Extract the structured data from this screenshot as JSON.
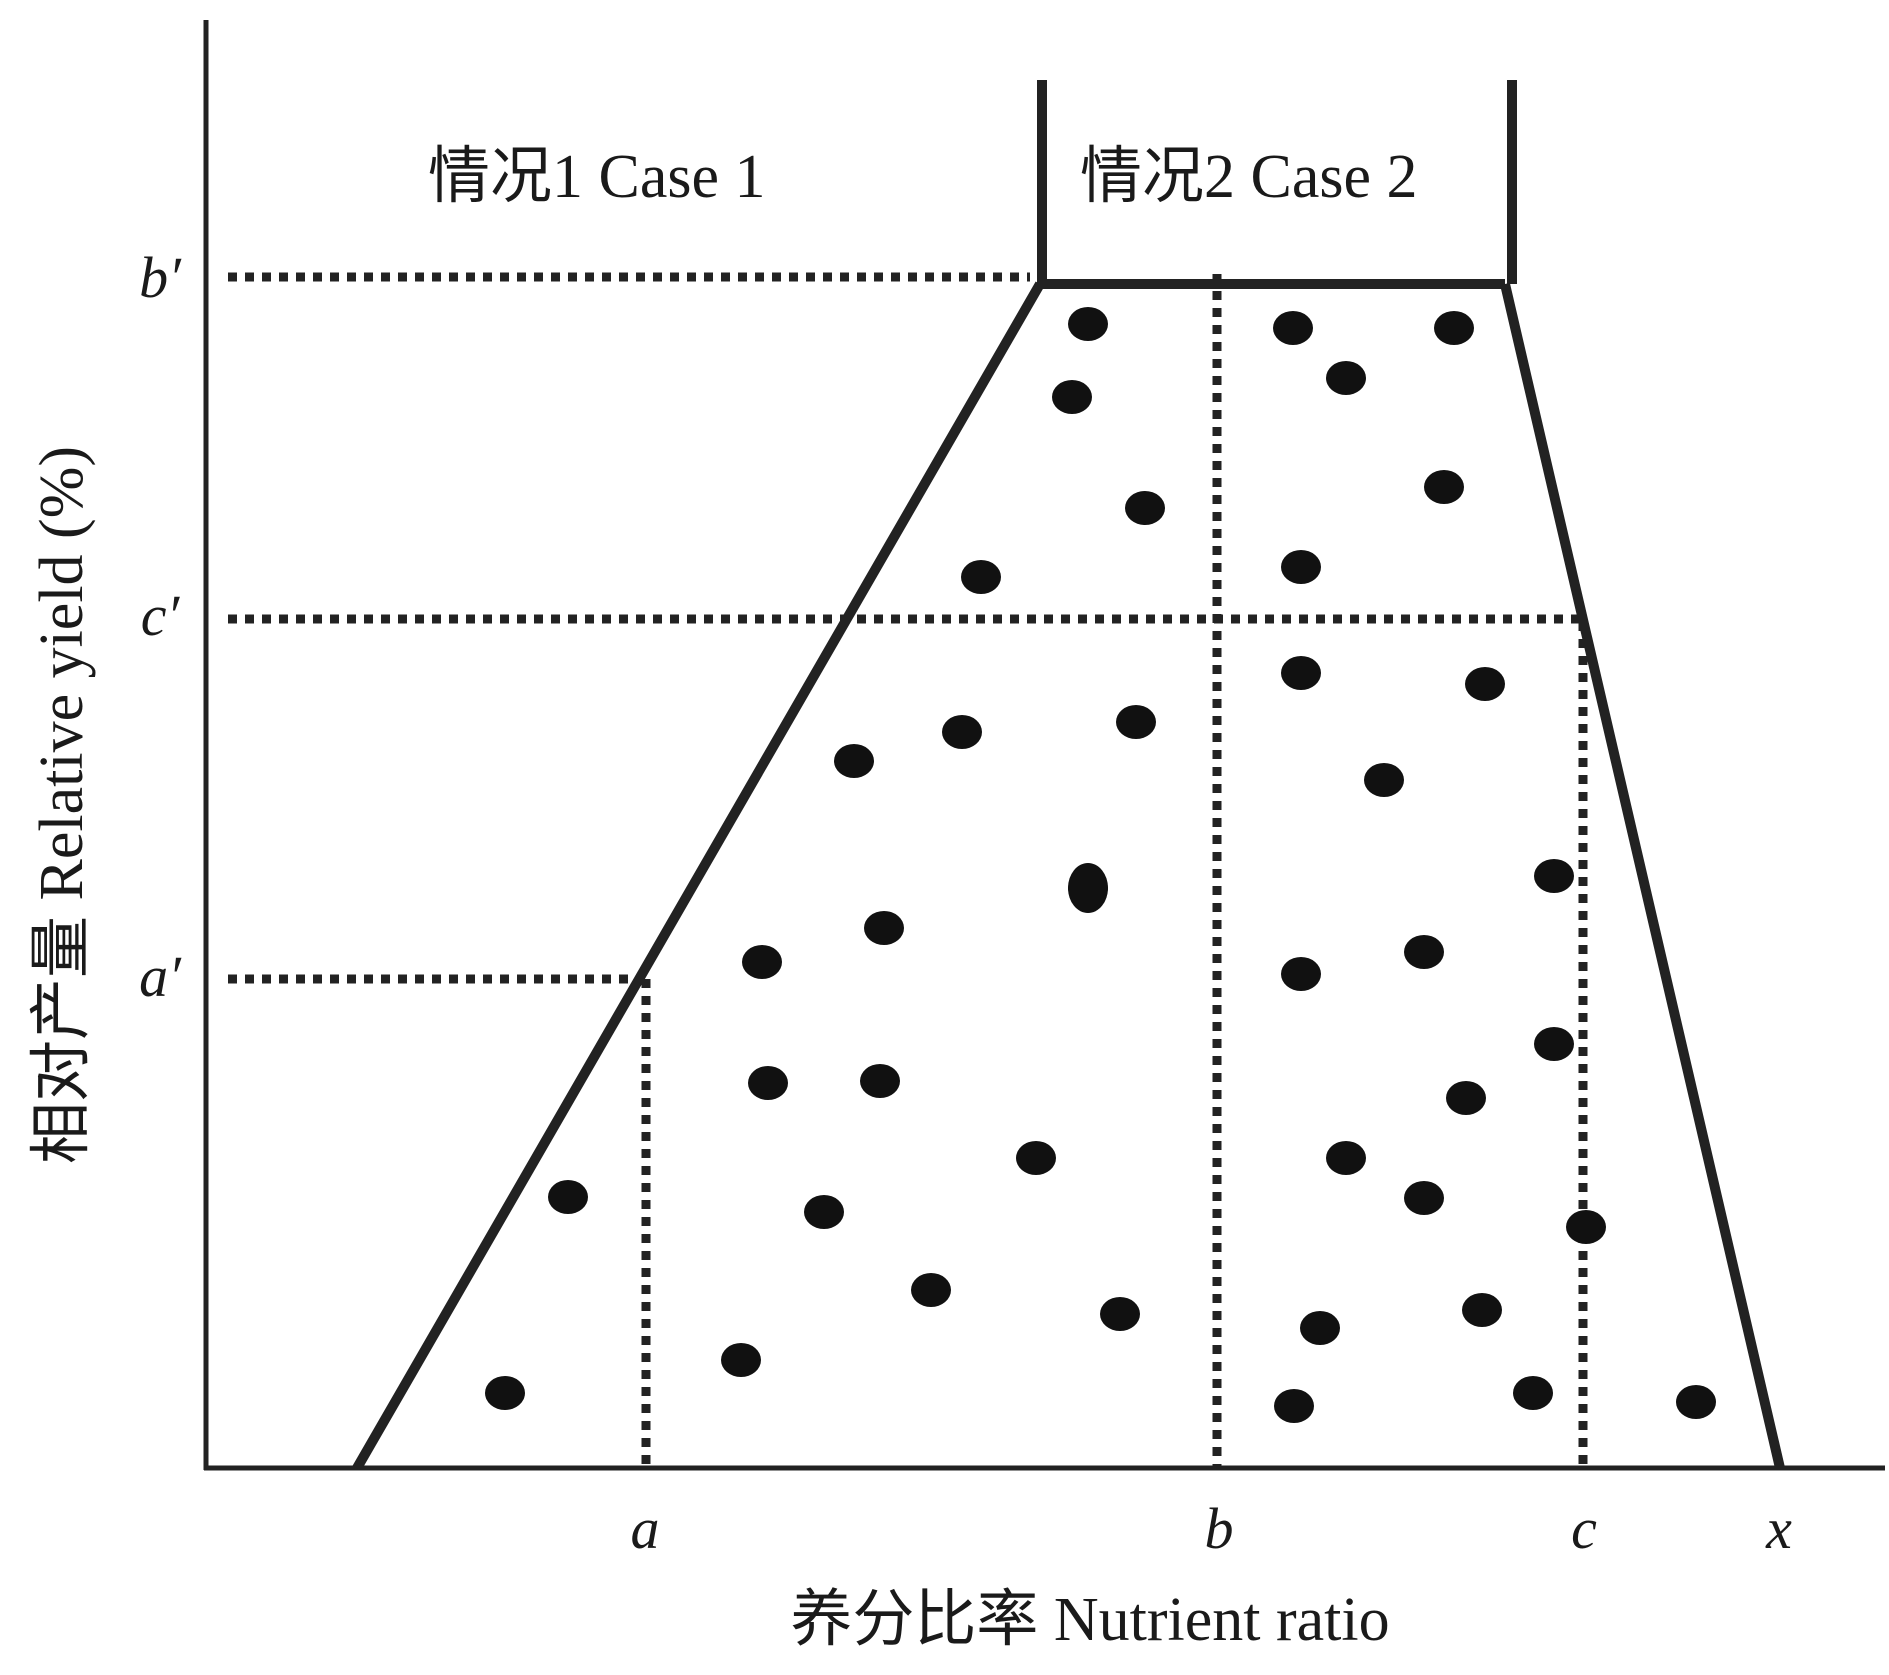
{
  "diagram": {
    "case1_label": "情况1  Case 1",
    "case2_label": "情况2  Case 2",
    "x_axis_label": "养分比率 Nutrient ratio",
    "y_axis_label": "相对产量 Relative yield (%)",
    "x_ticks": [
      "a",
      "b",
      "c",
      "x"
    ],
    "y_ticks": [
      "b′",
      "c′",
      "a′"
    ],
    "dot_count": 46,
    "colors": {
      "line": "#222222",
      "dot": "#111111",
      "background": "#ffffff"
    }
  }
}
